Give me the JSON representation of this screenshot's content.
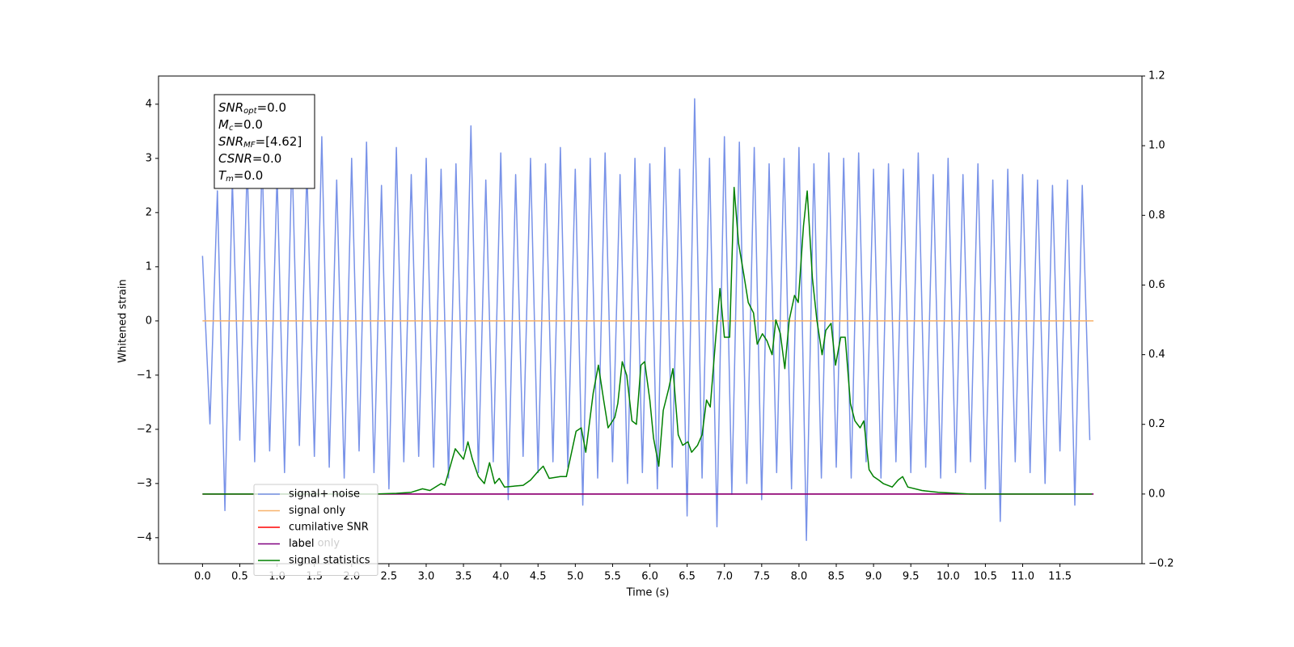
{
  "chart_data": {
    "type": "line",
    "xlabel": "Time (s)",
    "ylabel": "Whitened strain",
    "xlim": [
      -0.59,
      12.6
    ],
    "ylim": [
      -4.48,
      4.52
    ],
    "y2lim": [
      -0.2,
      1.2
    ],
    "xticks": [
      {
        "value": 0,
        "label": "0.0"
      },
      0.5,
      {
        "value": 1,
        "label": "1.0"
      },
      1.5,
      {
        "value": 2,
        "label": "2.0"
      },
      2.5,
      {
        "value": 3,
        "label": "3.0"
      },
      3.5,
      {
        "value": 4,
        "label": "4.0"
      },
      4.5,
      {
        "value": 5,
        "label": "5.0"
      },
      5.5,
      {
        "value": 6,
        "label": "6.0"
      },
      6.5,
      {
        "value": 7,
        "label": "7.0"
      },
      7.5,
      {
        "value": 8,
        "label": "8.0"
      },
      8.5,
      {
        "value": 9,
        "label": "9.0"
      },
      9.5,
      {
        "value": 10,
        "label": "10.0"
      },
      10.5,
      {
        "value": 11,
        "label": "11.0"
      },
      11.5
    ],
    "yticks": [
      {
        "value": -4,
        "label": "−4"
      },
      {
        "value": -3,
        "label": "−3"
      },
      {
        "value": -2,
        "label": "−2"
      },
      {
        "value": -1,
        "label": "−1"
      },
      0,
      1,
      2,
      3,
      4
    ],
    "y2ticks": [
      {
        "value": -0.2,
        "label": "−0.2"
      },
      {
        "value": 0,
        "label": "0.0"
      },
      0.2,
      0.4,
      0.6,
      0.8,
      {
        "value": 1,
        "label": "1.0"
      },
      1.2
    ],
    "legend": "lower left",
    "background_legend": [
      "label only"
    ],
    "annotation": [
      {
        "base": "SNR",
        "sub": "opt",
        "rest": "=0.0"
      },
      {
        "base": "M",
        "sub": "c",
        "rest": "=0.0"
      },
      {
        "base": "SNR",
        "sub": "MF",
        "rest": "=[4.62]"
      },
      {
        "base": "CSNR",
        "sub": "",
        "rest": "=0.0"
      },
      {
        "base": "T",
        "sub": "m",
        "rest": "=0.0"
      }
    ],
    "series": [
      {
        "name": "signal+ noise",
        "color": "#7892e8",
        "axis": "y",
        "x": [
          0.0,
          0.1,
          0.2,
          0.3,
          0.4,
          0.5,
          0.6,
          0.7,
          0.8,
          0.9,
          1.0,
          1.1,
          1.2,
          1.3,
          1.4,
          1.5,
          1.6,
          1.7,
          1.8,
          1.9,
          2.0,
          2.1,
          2.2,
          2.3,
          2.4,
          2.5,
          2.6,
          2.7,
          2.8,
          2.9,
          3.0,
          3.1,
          3.2,
          3.3,
          3.4,
          3.5,
          3.6,
          3.7,
          3.8,
          3.9,
          4.0,
          4.1,
          4.2,
          4.3,
          4.4,
          4.5,
          4.6,
          4.7,
          4.8,
          4.9,
          5.0,
          5.1,
          5.2,
          5.3,
          5.4,
          5.5,
          5.6,
          5.7,
          5.8,
          5.9,
          6.0,
          6.1,
          6.2,
          6.3,
          6.4,
          6.5,
          6.6,
          6.7,
          6.8,
          6.9,
          7.0,
          7.1,
          7.2,
          7.3,
          7.4,
          7.5,
          7.6,
          7.7,
          7.8,
          7.9,
          8.0,
          8.1,
          8.2,
          8.3,
          8.4,
          8.5,
          8.6,
          8.7,
          8.8,
          8.9,
          9.0,
          9.1,
          9.2,
          9.3,
          9.4,
          9.5,
          9.6,
          9.7,
          9.8,
          9.9,
          10.0,
          10.1,
          10.2,
          10.3,
          10.4,
          10.5,
          10.6,
          10.7,
          10.8,
          10.9,
          11.0,
          11.1,
          11.2,
          11.3,
          11.4,
          11.5,
          11.6,
          11.7,
          11.8,
          11.9
        ],
        "values": [
          1.2,
          -1.9,
          2.4,
          -3.5,
          2.6,
          -2.2,
          2.9,
          -2.6,
          3.0,
          -2.4,
          2.7,
          -2.8,
          3.1,
          -2.3,
          2.8,
          -2.5,
          3.4,
          -2.7,
          2.6,
          -2.9,
          3.0,
          -2.4,
          3.3,
          -2.8,
          2.5,
          -3.1,
          3.2,
          -2.6,
          2.7,
          -2.5,
          3.0,
          -2.7,
          2.8,
          -2.9,
          2.9,
          -2.4,
          3.6,
          -2.8,
          2.6,
          -2.6,
          3.1,
          -3.3,
          2.7,
          -2.5,
          3.0,
          -2.8,
          2.9,
          -2.6,
          3.2,
          -2.7,
          2.8,
          -3.4,
          3.0,
          -2.9,
          3.1,
          -2.6,
          2.7,
          -3.0,
          3.0,
          -2.8,
          2.9,
          -3.1,
          3.2,
          -2.7,
          2.8,
          -3.6,
          4.1,
          -2.9,
          3.0,
          -3.8,
          3.4,
          -3.2,
          3.3,
          -3.0,
          3.2,
          -3.3,
          2.9,
          -2.8,
          3.0,
          -3.1,
          3.2,
          -4.05,
          2.9,
          -2.9,
          3.1,
          -2.7,
          3.0,
          -2.9,
          3.1,
          -2.6,
          2.8,
          -2.9,
          2.9,
          -2.6,
          2.8,
          -2.8,
          3.1,
          -2.7,
          2.7,
          -2.9,
          3.0,
          -2.8,
          2.7,
          -2.6,
          2.9,
          -3.1,
          2.6,
          -3.7,
          2.8,
          -2.6,
          2.7,
          -2.8,
          2.6,
          -3.0,
          2.5,
          -2.4,
          2.6,
          -3.4,
          2.5,
          -2.2
        ]
      },
      {
        "name": "signal only",
        "color": "#f7b26b",
        "axis": "y",
        "x": [
          0.0,
          11.95
        ],
        "values": [
          0,
          0
        ]
      },
      {
        "name": "cumilative SNR",
        "color": "#ff0000",
        "axis": "y2",
        "x": [
          0.0,
          11.95
        ],
        "values": [
          0,
          0
        ]
      },
      {
        "name": "label",
        "color": "#800080",
        "axis": "y2",
        "x": [
          0.0,
          11.95
        ],
        "values": [
          0,
          0
        ]
      },
      {
        "name": "signal statistics",
        "color": "#008000",
        "axis": "y2",
        "x": [
          0.0,
          2.3,
          2.6,
          2.8,
          2.95,
          3.05,
          3.2,
          3.25,
          3.39,
          3.5,
          3.56,
          3.62,
          3.7,
          3.78,
          3.85,
          3.92,
          3.98,
          4.05,
          4.3,
          4.4,
          4.5,
          4.57,
          4.65,
          4.8,
          4.88,
          5.01,
          5.08,
          5.14,
          5.24,
          5.31,
          5.38,
          5.44,
          5.53,
          5.57,
          5.63,
          5.69,
          5.76,
          5.82,
          5.88,
          5.93,
          6.0,
          6.05,
          6.12,
          6.18,
          6.25,
          6.31,
          6.38,
          6.44,
          6.51,
          6.56,
          6.64,
          6.7,
          6.76,
          6.81,
          6.88,
          6.94,
          7.0,
          7.07,
          7.13,
          7.19,
          7.26,
          7.32,
          7.39,
          7.44,
          7.51,
          7.57,
          7.64,
          7.69,
          7.75,
          7.81,
          7.87,
          7.94,
          7.99,
          8.06,
          8.11,
          8.18,
          8.24,
          8.31,
          8.36,
          8.43,
          8.49,
          8.56,
          8.62,
          8.69,
          8.75,
          8.82,
          8.87,
          8.94,
          9.0,
          9.07,
          9.13,
          9.25,
          9.33,
          9.39,
          9.46,
          9.65,
          9.87,
          10.3,
          11.93
        ],
        "values": [
          0,
          0,
          0.002,
          0.005,
          0.015,
          0.01,
          0.03,
          0.025,
          0.13,
          0.1,
          0.15,
          0.1,
          0.05,
          0.03,
          0.09,
          0.03,
          0.045,
          0.02,
          0.025,
          0.04,
          0.065,
          0.08,
          0.045,
          0.05,
          0.05,
          0.18,
          0.19,
          0.12,
          0.29,
          0.37,
          0.27,
          0.19,
          0.22,
          0.26,
          0.38,
          0.34,
          0.21,
          0.2,
          0.37,
          0.38,
          0.27,
          0.16,
          0.08,
          0.24,
          0.3,
          0.36,
          0.17,
          0.14,
          0.15,
          0.12,
          0.14,
          0.17,
          0.27,
          0.25,
          0.44,
          0.59,
          0.45,
          0.45,
          0.88,
          0.72,
          0.63,
          0.55,
          0.52,
          0.43,
          0.46,
          0.44,
          0.4,
          0.5,
          0.46,
          0.36,
          0.5,
          0.57,
          0.55,
          0.77,
          0.87,
          0.62,
          0.5,
          0.4,
          0.47,
          0.49,
          0.37,
          0.45,
          0.45,
          0.26,
          0.21,
          0.19,
          0.21,
          0.07,
          0.05,
          0.04,
          0.03,
          0.02,
          0.04,
          0.05,
          0.02,
          0.01,
          0.005,
          0,
          0
        ]
      }
    ]
  }
}
